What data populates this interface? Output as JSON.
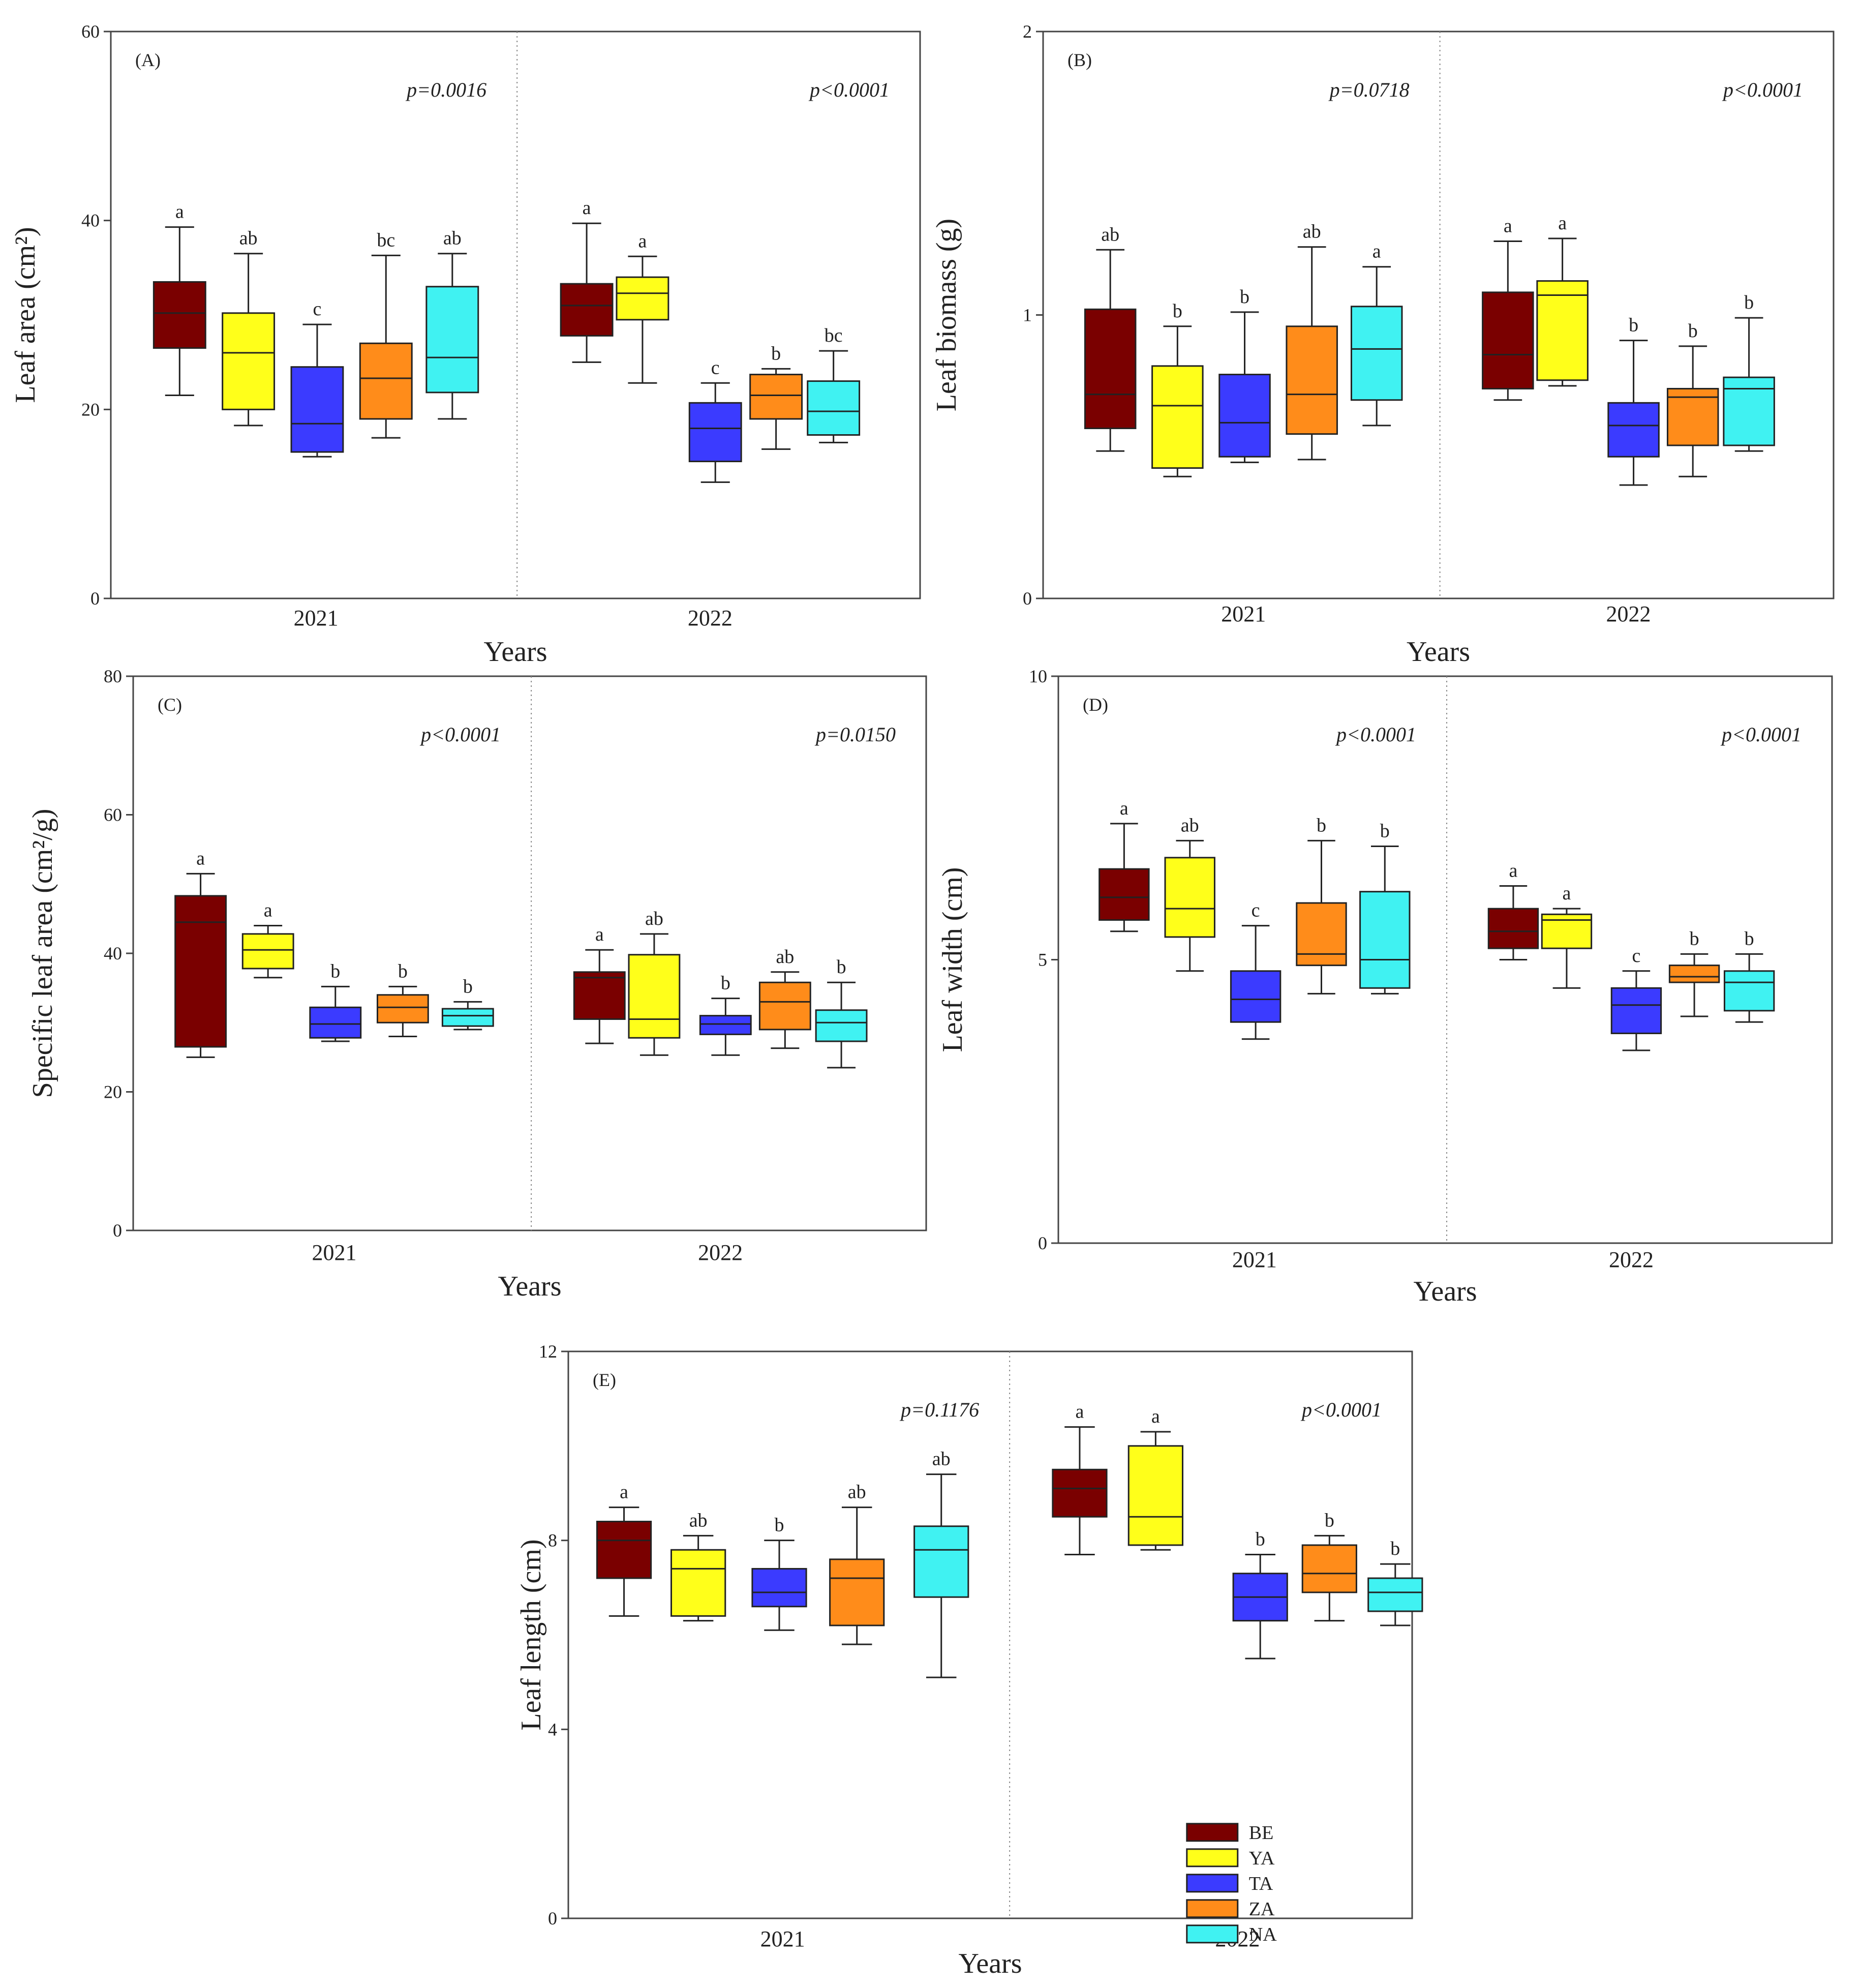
{
  "colors": {
    "BE": "#7a0000",
    "YA": "#ffff1a",
    "TA": "#3b3bff",
    "ZA": "#ff8c1a",
    "NA": "#40f2f2"
  },
  "legend": [
    "BE",
    "YA",
    "TA",
    "ZA",
    "NA"
  ],
  "chart_data": [
    {
      "type": "box",
      "panel": "(A)",
      "ylabel": "Leaf area (cm²)",
      "xlabel": "Years",
      "ylim": [
        0,
        60
      ],
      "yticks": [
        "0",
        "20",
        "40",
        "60"
      ],
      "ytick_values": [
        0,
        20,
        40,
        60
      ],
      "groups": [
        {
          "year": "2021",
          "pval": "p=0.0016",
          "boxes": [
            {
              "name": "BE",
              "whislo": 21.5,
              "q1": 26.5,
              "med": 30.2,
              "q3": 33.5,
              "whishi": 39.3,
              "sig": "a"
            },
            {
              "name": "YA",
              "whislo": 18.3,
              "q1": 20.0,
              "med": 26.0,
              "q3": 30.2,
              "whishi": 36.5,
              "sig": "ab"
            },
            {
              "name": "TA",
              "whislo": 15.0,
              "q1": 15.5,
              "med": 18.5,
              "q3": 24.5,
              "whishi": 29.0,
              "sig": "c"
            },
            {
              "name": "ZA",
              "whislo": 17.0,
              "q1": 19.0,
              "med": 23.3,
              "q3": 27.0,
              "whishi": 36.3,
              "sig": "bc"
            },
            {
              "name": "NA",
              "whislo": 19.0,
              "q1": 21.8,
              "med": 25.5,
              "q3": 33.0,
              "whishi": 36.5,
              "sig": "ab"
            }
          ]
        },
        {
          "year": "2022",
          "pval": "p<0.0001",
          "boxes": [
            {
              "name": "BE",
              "whislo": 25.0,
              "q1": 27.8,
              "med": 31.0,
              "q3": 33.3,
              "whishi": 39.7,
              "sig": "a"
            },
            {
              "name": "YA",
              "whislo": 22.8,
              "q1": 29.5,
              "med": 32.3,
              "q3": 34.0,
              "whishi": 36.2,
              "sig": "a"
            },
            {
              "name": "TA",
              "whislo": 12.3,
              "q1": 14.5,
              "med": 18.0,
              "q3": 20.7,
              "whishi": 22.8,
              "sig": "c"
            },
            {
              "name": "ZA",
              "whislo": 15.8,
              "q1": 19.0,
              "med": 21.5,
              "q3": 23.7,
              "whishi": 24.3,
              "sig": "b"
            },
            {
              "name": "NA",
              "whislo": 16.5,
              "q1": 17.3,
              "med": 19.8,
              "q3": 23.0,
              "whishi": 26.2,
              "sig": "bc"
            }
          ]
        }
      ]
    },
    {
      "type": "box",
      "panel": "(B)",
      "ylabel": "Leaf biomass (g)",
      "xlabel": "Years",
      "ylim": [
        0,
        2
      ],
      "yticks": [
        "0",
        "1",
        "2"
      ],
      "ytick_values": [
        0,
        1,
        2
      ],
      "groups": [
        {
          "year": "2021",
          "pval": "p=0.0718",
          "boxes": [
            {
              "name": "BE",
              "whislo": 0.52,
              "q1": 0.6,
              "med": 0.72,
              "q3": 1.02,
              "whishi": 1.23,
              "sig": "ab"
            },
            {
              "name": "YA",
              "whislo": 0.43,
              "q1": 0.46,
              "med": 0.68,
              "q3": 0.82,
              "whishi": 0.96,
              "sig": "b"
            },
            {
              "name": "TA",
              "whislo": 0.48,
              "q1": 0.5,
              "med": 0.62,
              "q3": 0.79,
              "whishi": 1.01,
              "sig": "b"
            },
            {
              "name": "ZA",
              "whislo": 0.49,
              "q1": 0.58,
              "med": 0.72,
              "q3": 0.96,
              "whishi": 1.24,
              "sig": "ab"
            },
            {
              "name": "NA",
              "whislo": 0.61,
              "q1": 0.7,
              "med": 0.88,
              "q3": 1.03,
              "whishi": 1.17,
              "sig": "a"
            }
          ]
        },
        {
          "year": "2022",
          "pval": "p<0.0001",
          "boxes": [
            {
              "name": "BE",
              "whislo": 0.7,
              "q1": 0.74,
              "med": 0.86,
              "q3": 1.08,
              "whishi": 1.26,
              "sig": "a"
            },
            {
              "name": "YA",
              "whislo": 0.75,
              "q1": 0.77,
              "med": 1.07,
              "q3": 1.12,
              "whishi": 1.27,
              "sig": "a"
            },
            {
              "name": "TA",
              "whislo": 0.4,
              "q1": 0.5,
              "med": 0.61,
              "q3": 0.69,
              "whishi": 0.91,
              "sig": "b"
            },
            {
              "name": "ZA",
              "whislo": 0.43,
              "q1": 0.54,
              "med": 0.71,
              "q3": 0.74,
              "whishi": 0.89,
              "sig": "b"
            },
            {
              "name": "NA",
              "whislo": 0.52,
              "q1": 0.54,
              "med": 0.74,
              "q3": 0.78,
              "whishi": 0.99,
              "sig": "b"
            }
          ]
        }
      ]
    },
    {
      "type": "box",
      "panel": "(C)",
      "ylabel": "Specific leaf area (cm²/g)",
      "xlabel": "Years",
      "ylim": [
        0,
        80
      ],
      "yticks": [
        "0",
        "20",
        "40",
        "60",
        "80"
      ],
      "ytick_values": [
        0,
        20,
        40,
        60,
        80
      ],
      "groups": [
        {
          "year": "2021",
          "pval": "p<0.0001",
          "boxes": [
            {
              "name": "BE",
              "whislo": 25.0,
              "q1": 26.5,
              "med": 44.5,
              "q3": 48.3,
              "whishi": 51.5,
              "sig": "a"
            },
            {
              "name": "YA",
              "whislo": 36.5,
              "q1": 37.8,
              "med": 40.5,
              "q3": 42.8,
              "whishi": 44.0,
              "sig": "a"
            },
            {
              "name": "TA",
              "whislo": 27.3,
              "q1": 27.8,
              "med": 29.8,
              "q3": 32.2,
              "whishi": 35.2,
              "sig": "b"
            },
            {
              "name": "ZA",
              "whislo": 28.0,
              "q1": 30.0,
              "med": 32.2,
              "q3": 34.0,
              "whishi": 35.2,
              "sig": "b"
            },
            {
              "name": "NA",
              "whislo": 29.0,
              "q1": 29.5,
              "med": 31.0,
              "q3": 32.0,
              "whishi": 33.0,
              "sig": "b"
            }
          ]
        },
        {
          "year": "2022",
          "pval": "p=0.0150",
          "boxes": [
            {
              "name": "BE",
              "whislo": 27.0,
              "q1": 30.5,
              "med": 36.5,
              "q3": 37.3,
              "whishi": 40.5,
              "sig": "a"
            },
            {
              "name": "YA",
              "whislo": 25.3,
              "q1": 27.8,
              "med": 30.5,
              "q3": 39.8,
              "whishi": 42.8,
              "sig": "ab"
            },
            {
              "name": "TA",
              "whislo": 25.3,
              "q1": 28.3,
              "med": 29.8,
              "q3": 31.0,
              "whishi": 33.5,
              "sig": "b"
            },
            {
              "name": "ZA",
              "whislo": 26.3,
              "q1": 29.0,
              "med": 33.0,
              "q3": 35.8,
              "whishi": 37.3,
              "sig": "ab"
            },
            {
              "name": "NA",
              "whislo": 23.5,
              "q1": 27.3,
              "med": 30.0,
              "q3": 31.8,
              "whishi": 35.8,
              "sig": "b"
            }
          ]
        }
      ]
    },
    {
      "type": "box",
      "panel": "(D)",
      "ylabel": "Leaf width (cm)",
      "xlabel": "Years",
      "ylim": [
        0,
        10
      ],
      "yticks": [
        "0",
        "5",
        "10"
      ],
      "ytick_values": [
        0,
        5,
        10
      ],
      "groups": [
        {
          "year": "2021",
          "pval": "p<0.0001",
          "boxes": [
            {
              "name": "BE",
              "whislo": 5.5,
              "q1": 5.7,
              "med": 6.1,
              "q3": 6.6,
              "whishi": 7.4,
              "sig": "a"
            },
            {
              "name": "YA",
              "whislo": 4.8,
              "q1": 5.4,
              "med": 5.9,
              "q3": 6.8,
              "whishi": 7.1,
              "sig": "ab"
            },
            {
              "name": "TA",
              "whislo": 3.6,
              "q1": 3.9,
              "med": 4.3,
              "q3": 4.8,
              "whishi": 5.6,
              "sig": "c"
            },
            {
              "name": "ZA",
              "whislo": 4.4,
              "q1": 4.9,
              "med": 5.1,
              "q3": 6.0,
              "whishi": 7.1,
              "sig": "b"
            },
            {
              "name": "NA",
              "whislo": 4.4,
              "q1": 4.5,
              "med": 5.0,
              "q3": 6.2,
              "whishi": 7.0,
              "sig": "b"
            }
          ]
        },
        {
          "year": "2022",
          "pval": "p<0.0001",
          "boxes": [
            {
              "name": "BE",
              "whislo": 5.0,
              "q1": 5.2,
              "med": 5.5,
              "q3": 5.9,
              "whishi": 6.3,
              "sig": "a"
            },
            {
              "name": "YA",
              "whislo": 4.5,
              "q1": 5.2,
              "med": 5.7,
              "q3": 5.8,
              "whishi": 5.9,
              "sig": "a"
            },
            {
              "name": "TA",
              "whislo": 3.4,
              "q1": 3.7,
              "med": 4.2,
              "q3": 4.5,
              "whishi": 4.8,
              "sig": "c"
            },
            {
              "name": "ZA",
              "whislo": 4.0,
              "q1": 4.6,
              "med": 4.7,
              "q3": 4.9,
              "whishi": 5.1,
              "sig": "b"
            },
            {
              "name": "NA",
              "whislo": 3.9,
              "q1": 4.1,
              "med": 4.6,
              "q3": 4.8,
              "whishi": 5.1,
              "sig": "b"
            }
          ]
        }
      ]
    },
    {
      "type": "box",
      "panel": "(E)",
      "ylabel": "Leaf length (cm)",
      "xlabel": "Years",
      "ylim": [
        0,
        12
      ],
      "yticks": [
        "0",
        "4",
        "8",
        "12"
      ],
      "ytick_values": [
        0,
        4,
        8,
        12
      ],
      "groups": [
        {
          "year": "2021",
          "pval": "p=0.1176",
          "boxes": [
            {
              "name": "BE",
              "whislo": 6.4,
              "q1": 7.2,
              "med": 8.0,
              "q3": 8.4,
              "whishi": 8.7,
              "sig": "a"
            },
            {
              "name": "YA",
              "whislo": 6.3,
              "q1": 6.4,
              "med": 7.4,
              "q3": 7.8,
              "whishi": 8.1,
              "sig": "ab"
            },
            {
              "name": "TA",
              "whislo": 6.1,
              "q1": 6.6,
              "med": 6.9,
              "q3": 7.4,
              "whishi": 8.0,
              "sig": "b"
            },
            {
              "name": "ZA",
              "whislo": 5.8,
              "q1": 6.2,
              "med": 7.2,
              "q3": 7.6,
              "whishi": 8.7,
              "sig": "ab"
            },
            {
              "name": "NA",
              "whislo": 5.1,
              "q1": 6.8,
              "med": 7.8,
              "q3": 8.3,
              "whishi": 9.4,
              "sig": "ab"
            }
          ]
        },
        {
          "year": "2022",
          "pval": "p<0.0001",
          "boxes": [
            {
              "name": "BE",
              "whislo": 7.7,
              "q1": 8.5,
              "med": 9.1,
              "q3": 9.5,
              "whishi": 10.4,
              "sig": "a"
            },
            {
              "name": "YA",
              "whislo": 7.8,
              "q1": 7.9,
              "med": 8.5,
              "q3": 10.0,
              "whishi": 10.3,
              "sig": "a"
            },
            {
              "name": "TA",
              "whislo": 5.5,
              "q1": 6.3,
              "med": 6.8,
              "q3": 7.3,
              "whishi": 7.7,
              "sig": "b"
            },
            {
              "name": "ZA",
              "whislo": 6.3,
              "q1": 6.9,
              "med": 7.3,
              "q3": 7.9,
              "whishi": 8.1,
              "sig": "b"
            },
            {
              "name": "NA",
              "whislo": 6.2,
              "q1": 6.5,
              "med": 6.9,
              "q3": 7.2,
              "whishi": 7.5,
              "sig": "b"
            }
          ]
        }
      ]
    }
  ]
}
